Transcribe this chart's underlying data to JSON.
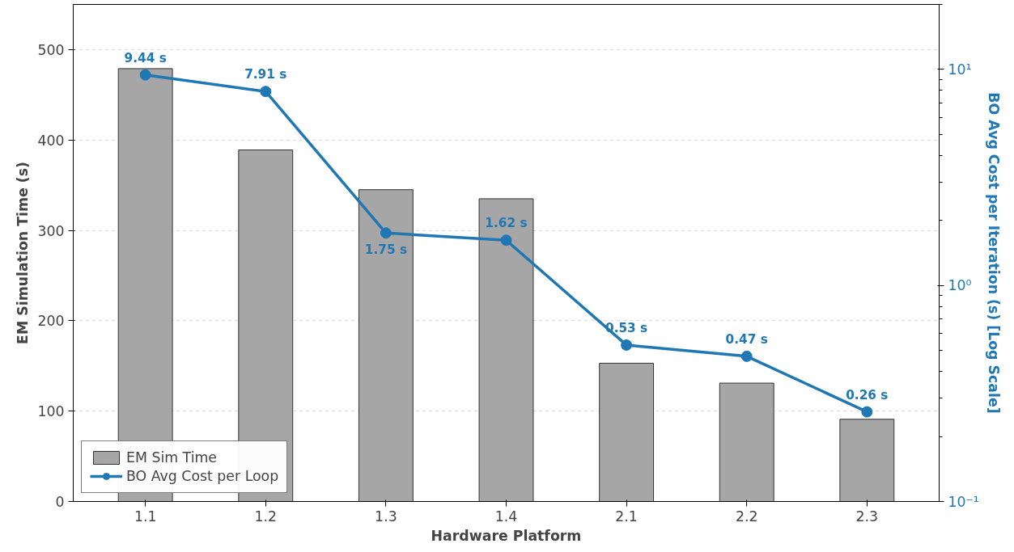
{
  "chart_data": {
    "type": "bar",
    "xlabel": "Hardware Platform",
    "ylabel": "EM Simulation Time (s)",
    "y2label": "BO Avg Cost per Iteration (s) [Log Scale]",
    "categories": [
      "1.1",
      "1.2",
      "1.3",
      "1.4",
      "2.1",
      "2.2",
      "2.3"
    ],
    "ylim": [
      0,
      550
    ],
    "yticks": [
      0,
      100,
      200,
      300,
      400,
      500
    ],
    "y2lim": [
      0.1,
      20
    ],
    "y2ticks": [
      {
        "value": 0.1,
        "label": "10⁻¹"
      },
      {
        "value": 1,
        "label": "10⁰"
      },
      {
        "value": 10,
        "label": "10¹"
      }
    ],
    "log": "y2",
    "grid": "y",
    "legend": "bottom left",
    "series": [
      {
        "name": "EM Sim Time",
        "color": "#a6a6a6",
        "values": [
          479,
          389,
          345,
          335,
          153,
          131,
          91
        ]
      },
      {
        "name": "BO Avg Cost per Loop",
        "type": "line",
        "axis": "y2",
        "color": "#1f77b4",
        "marker": "circle",
        "values": [
          9.44,
          7.91,
          1.75,
          1.62,
          0.53,
          0.47,
          0.26
        ],
        "value_labels": [
          "9.44 s",
          "7.91 s",
          "1.75 s",
          "1.62 s",
          "0.53 s",
          "0.47 s",
          "0.26 s"
        ]
      }
    ]
  }
}
